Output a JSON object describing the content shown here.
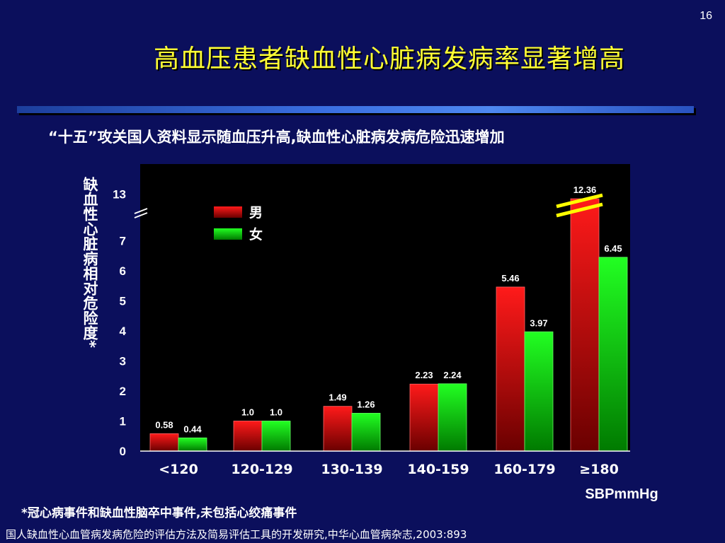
{
  "page_number": "16",
  "title": "高血压患者缺血性心脏病发病率显著增高",
  "subtitle": "“十五”攻关国人资料显示随血压升高,缺血性心脏病发病危险迅速增加",
  "footnote": "*冠心病事件和缺血性脑卒中事件,未包括心绞痛事件",
  "source": "国人缺血性心血管病发病危险的评估方法及简易评估工具的开发研究,中华心血管病杂志,2003:893",
  "colors": {
    "background": "#0b0f5c",
    "title": "#ffff33",
    "male_bar": "#ff0000",
    "female_bar": "#00ff00",
    "plot_background": "#000000"
  },
  "chart_data": {
    "type": "bar",
    "categories": [
      "<120",
      "120-129",
      "130-139",
      "140-159",
      "160-179",
      "≥180"
    ],
    "series": [
      {
        "name": "男",
        "values": [
          0.58,
          1.0,
          1.49,
          2.23,
          5.46,
          12.36
        ],
        "labels": [
          "0.58",
          "1.0",
          "1.49",
          "2.23",
          "5.46",
          "12.36"
        ]
      },
      {
        "name": "女",
        "values": [
          0.44,
          1.0,
          1.26,
          2.24,
          3.97,
          6.45
        ],
        "labels": [
          "0.44",
          "1.0",
          "1.26",
          "2.24",
          "3.97",
          "6.45"
        ]
      }
    ],
    "ylabel": "缺血性心脏病相对危险度*",
    "xlabel": "SBPmmHg",
    "yticks": [
      "0",
      "1",
      "2",
      "3",
      "4",
      "5",
      "6",
      "7",
      "13"
    ],
    "ylim": [
      0,
      13
    ],
    "axis_break": "between 7 and 13",
    "legend_position": "top-left",
    "grid": false
  }
}
